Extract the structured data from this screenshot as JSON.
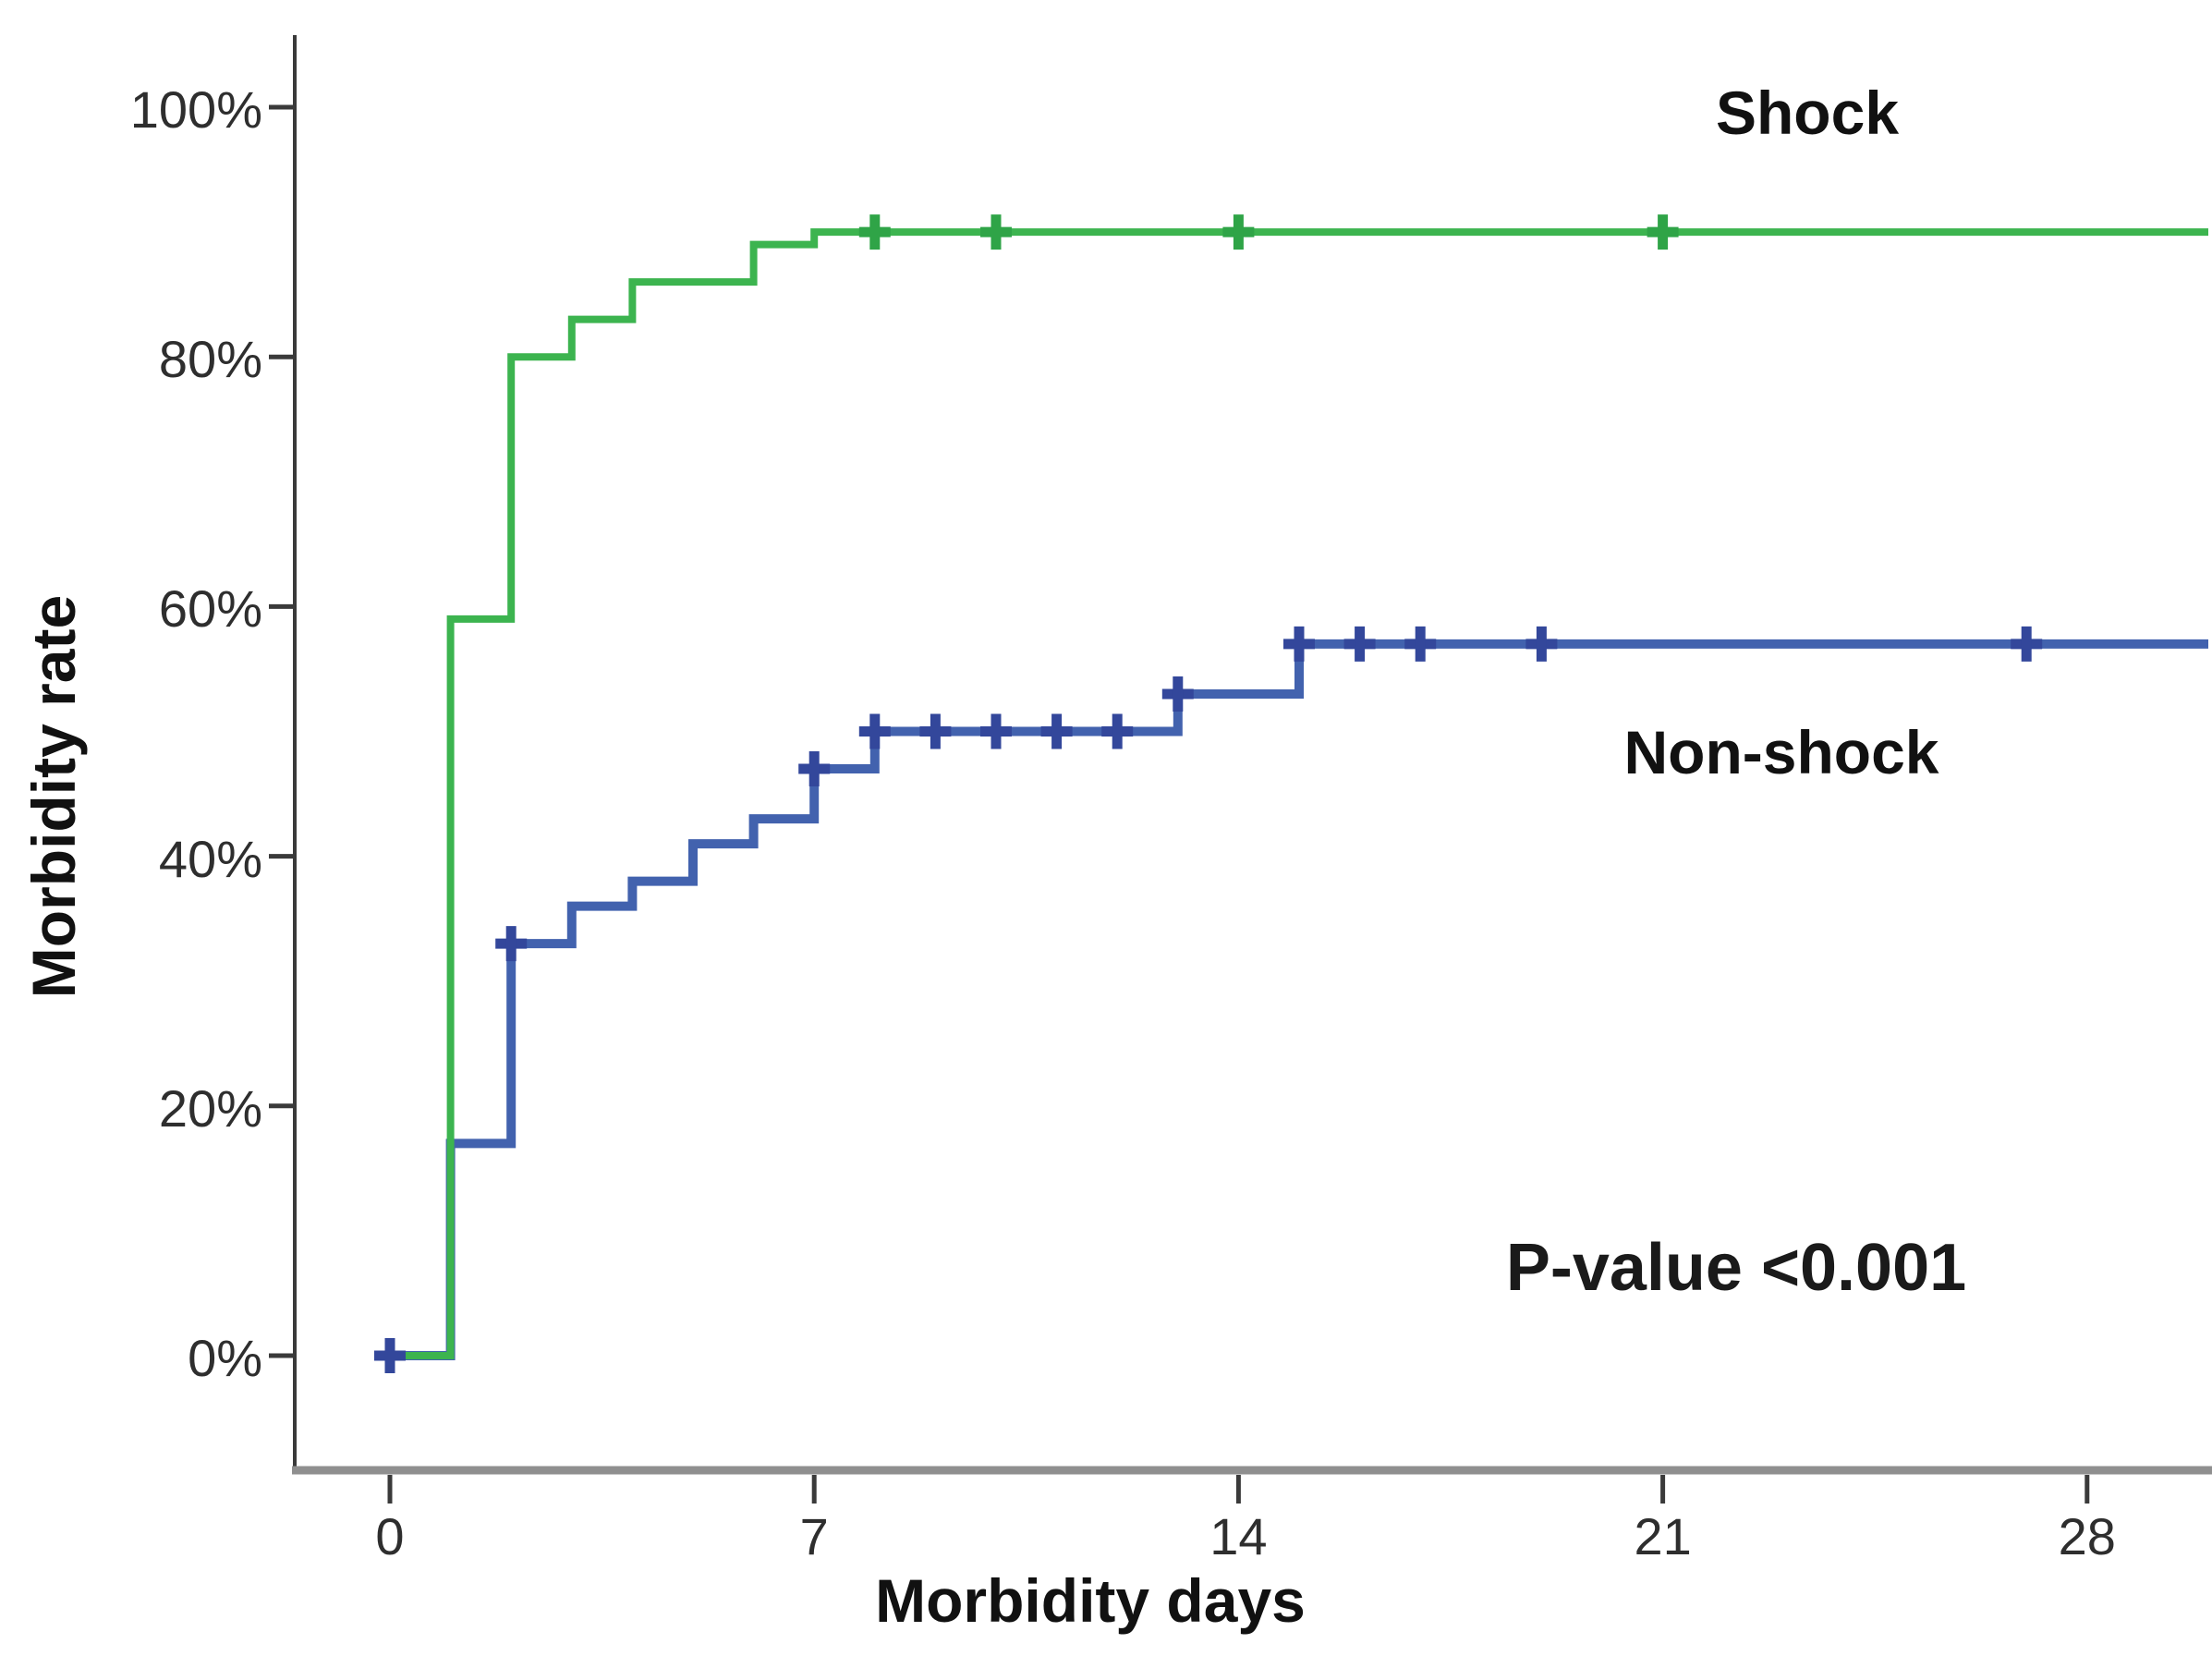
{
  "chart_data": {
    "type": "line",
    "subtype": "kaplan-meier-step-plot",
    "title": "",
    "xlabel": "Morbidity days",
    "ylabel": "Morbidity rate",
    "annotation": "P-value <0.001",
    "x_ticks": [
      0,
      7,
      14,
      21,
      28
    ],
    "y_tick_values": [
      0,
      20,
      40,
      60,
      80,
      100
    ],
    "y_tick_labels": [
      "0%",
      "20%",
      "40%",
      "60%",
      "80%",
      "100%"
    ],
    "xlim": [
      0,
      30
    ],
    "ylim": [
      0,
      100
    ],
    "grid": false,
    "legend_position": "inline-labels-on-plot",
    "axis_colors": {
      "y_axis": "#3a3a3a",
      "x_axis": "#8f8f8f",
      "tick": "#3a3a3a"
    },
    "series": [
      {
        "name": "Non-shock",
        "color": "#4262ae",
        "censor_color": "#33479b",
        "values_are": "percent morbidity rate by day",
        "step_points": [
          [
            0,
            0
          ],
          [
            1,
            0
          ],
          [
            1,
            17
          ],
          [
            2,
            17
          ],
          [
            2,
            33
          ],
          [
            3,
            33
          ],
          [
            3,
            36
          ],
          [
            4,
            36
          ],
          [
            4,
            38
          ],
          [
            5,
            38
          ],
          [
            5,
            41
          ],
          [
            6,
            41
          ],
          [
            6,
            43
          ],
          [
            7,
            43
          ],
          [
            7,
            47
          ],
          [
            8,
            47
          ],
          [
            8,
            50
          ],
          [
            13,
            50
          ],
          [
            13,
            53
          ],
          [
            15,
            53
          ],
          [
            15,
            57
          ],
          [
            30,
            57
          ]
        ],
        "censor_points": [
          [
            0,
            0
          ],
          [
            2,
            33
          ],
          [
            7,
            47
          ],
          [
            8,
            50
          ],
          [
            9,
            50
          ],
          [
            10,
            50
          ],
          [
            11,
            50
          ],
          [
            12,
            50
          ],
          [
            13,
            53
          ],
          [
            15,
            57
          ],
          [
            16,
            57
          ],
          [
            17,
            57
          ],
          [
            19,
            57
          ],
          [
            27,
            57
          ]
        ]
      },
      {
        "name": "Shock",
        "color": "#3cb44f",
        "censor_color": "#2fa447",
        "values_are": "percent morbidity rate by day",
        "step_points": [
          [
            0,
            0
          ],
          [
            1,
            0
          ],
          [
            1,
            59
          ],
          [
            2,
            59
          ],
          [
            2,
            80
          ],
          [
            3,
            80
          ],
          [
            3,
            83
          ],
          [
            4,
            83
          ],
          [
            4,
            86
          ],
          [
            6,
            86
          ],
          [
            6,
            89
          ],
          [
            7,
            89
          ],
          [
            7,
            90
          ],
          [
            30,
            90
          ]
        ],
        "censor_points": [
          [
            8,
            90
          ],
          [
            10,
            90
          ],
          [
            14,
            90
          ],
          [
            21,
            90
          ]
        ]
      }
    ]
  }
}
